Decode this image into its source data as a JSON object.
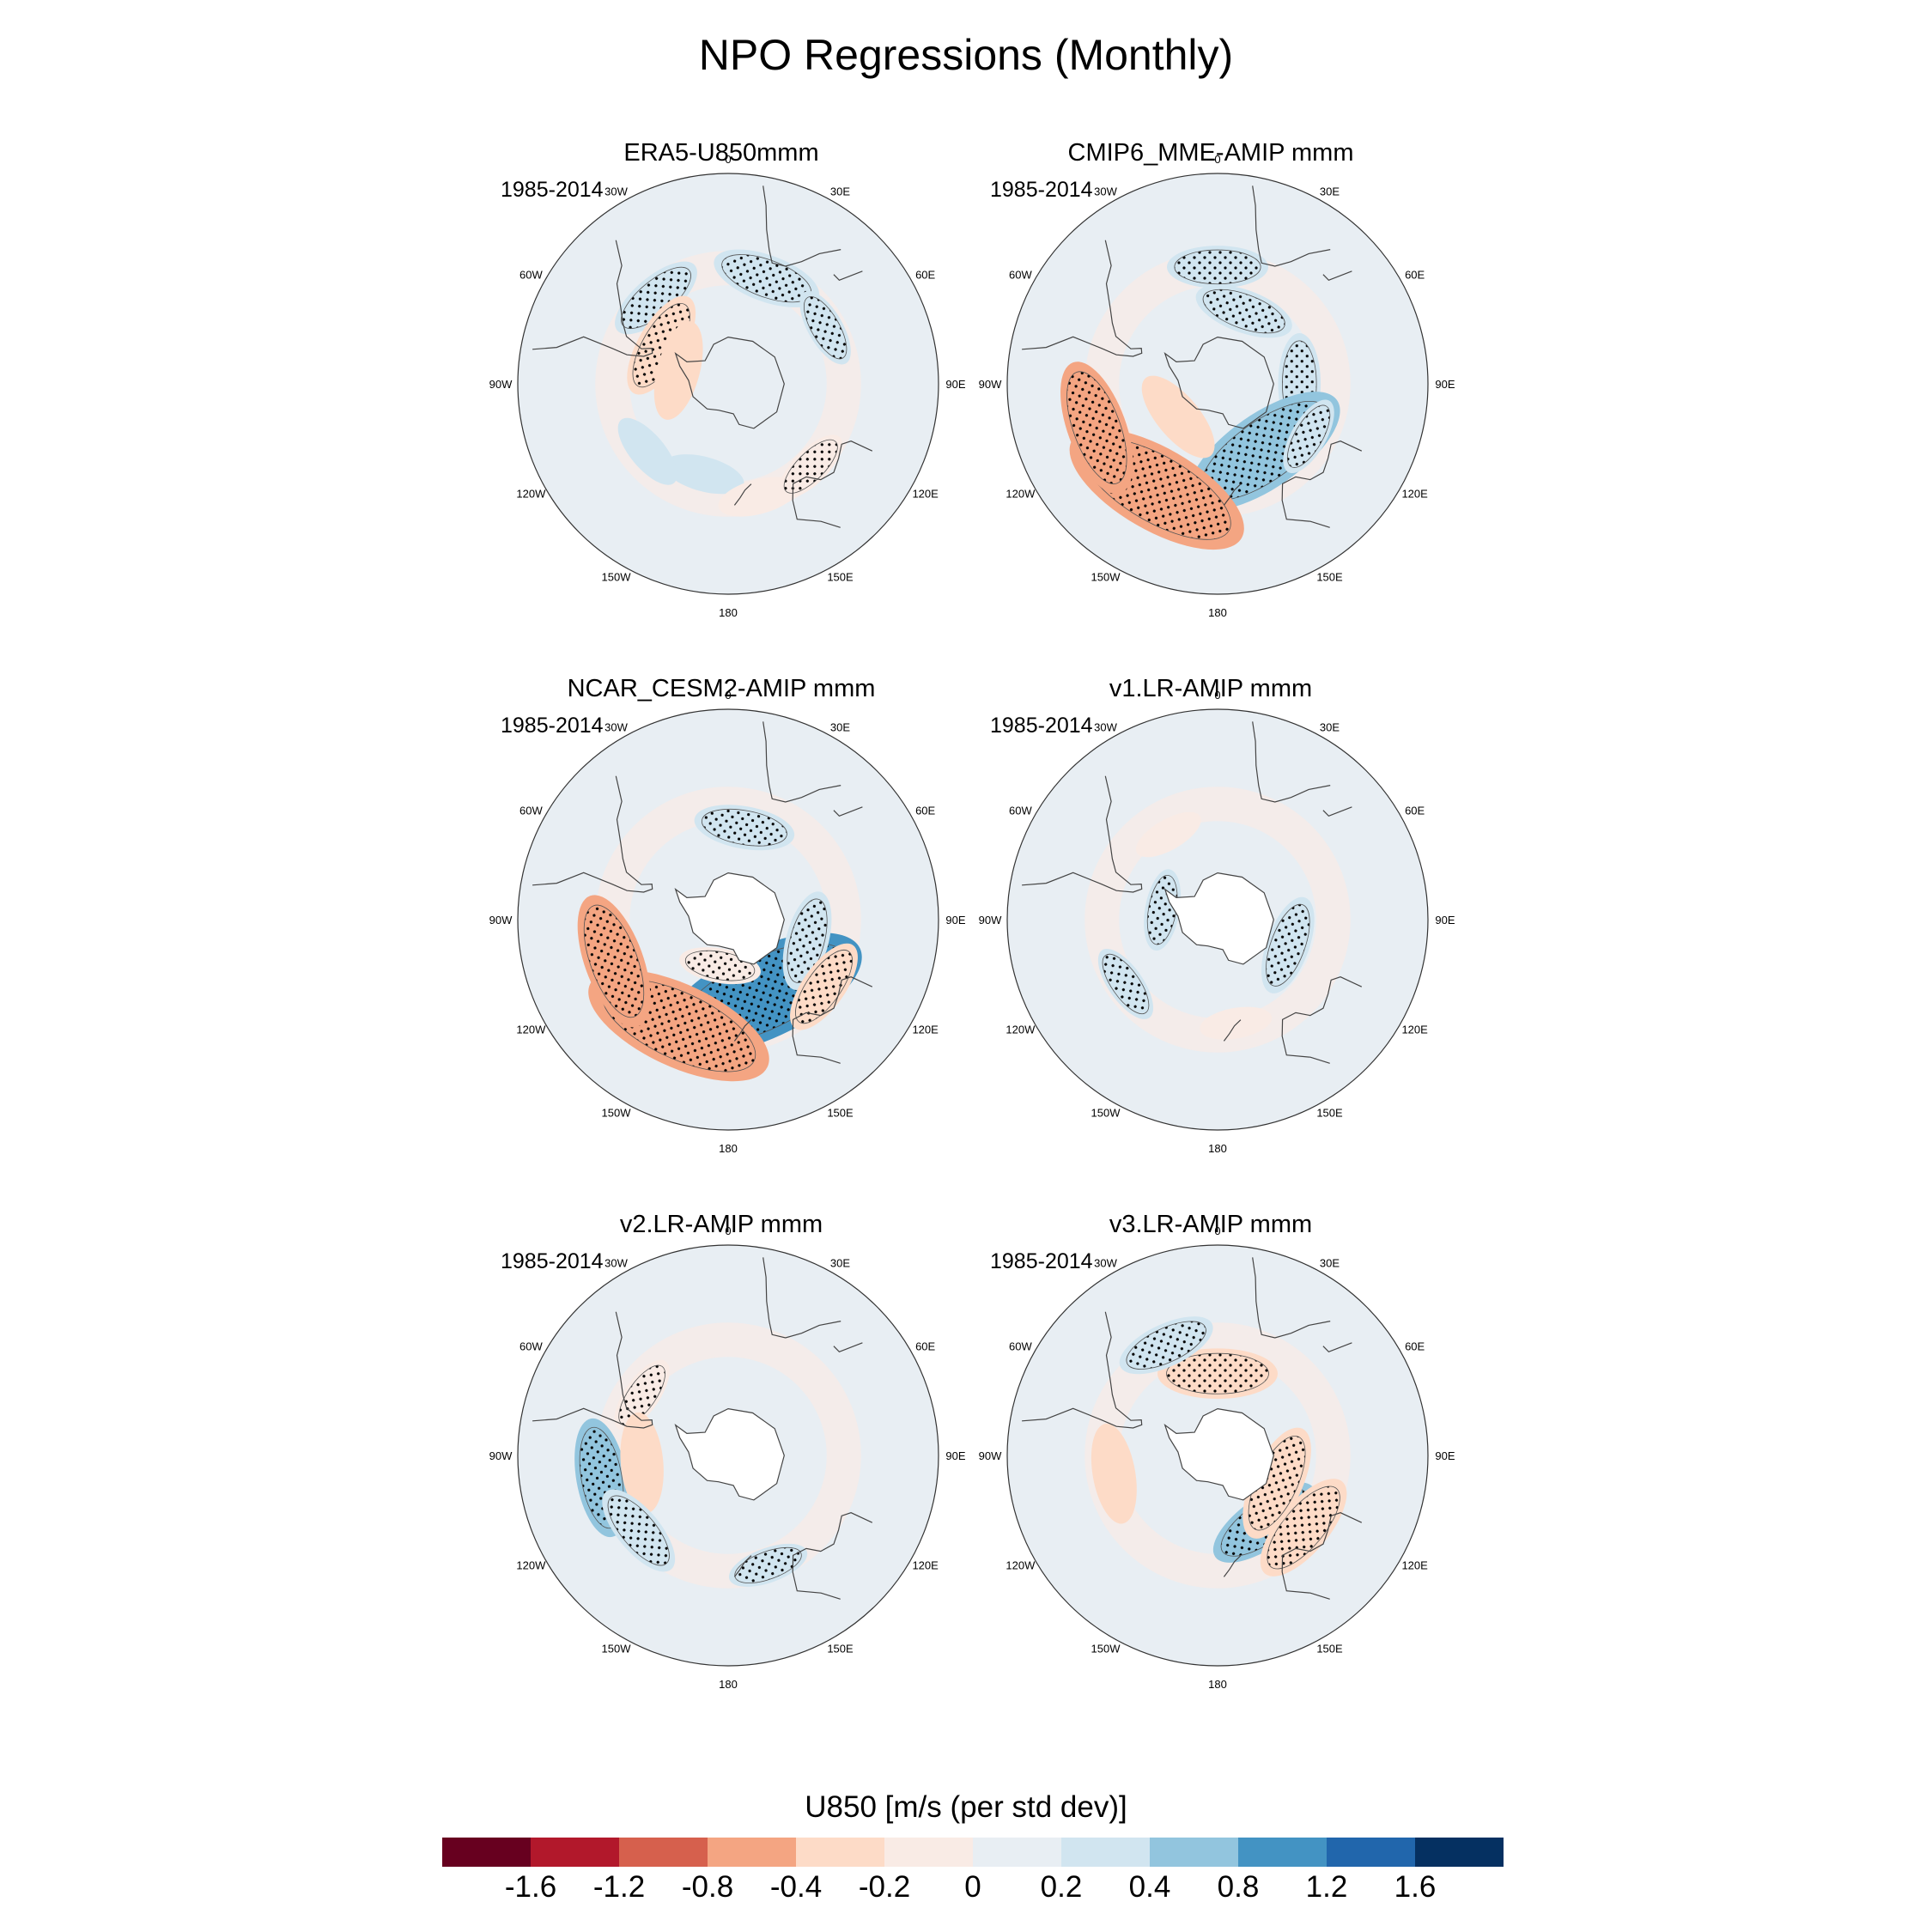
{
  "title": "NPO Regressions (Monthly)",
  "period": "1985-2014",
  "lon_labels": [
    "0",
    "30E",
    "60E",
    "90E",
    "120E",
    "150E",
    "180",
    "150W",
    "120W",
    "90W",
    "60W",
    "30W"
  ],
  "panels": [
    {
      "title": "ERA5-U850mmm",
      "antarctica_masked": false
    },
    {
      "title": "CMIP6_MME-AMIP  mmm",
      "antarctica_masked": false
    },
    {
      "title": "NCAR_CESM2-AMIP  mmm",
      "antarctica_masked": true
    },
    {
      "title": "v1.LR-AMIP  mmm",
      "antarctica_masked": true
    },
    {
      "title": "v2.LR-AMIP  mmm",
      "antarctica_masked": true
    },
    {
      "title": "v3.LR-AMIP  mmm",
      "antarctica_masked": true
    }
  ],
  "colorbar": {
    "title": "U850 [m/s (per std dev)]",
    "colors": [
      "#67001f",
      "#b2182b",
      "#d6604d",
      "#f4a582",
      "#fddbc7",
      "#f9ebe5",
      "#e8eef3",
      "#d1e5f0",
      "#92c5de",
      "#4393c3",
      "#2166ac",
      "#053061"
    ],
    "labels": [
      "-1.6",
      "-1.2",
      "-0.8",
      "-0.4",
      "-0.2",
      "0",
      "0.2",
      "0.4",
      "0.8",
      "1.2",
      "1.6"
    ]
  },
  "anomalies": [
    {
      "panel": 0,
      "lon": 20,
      "lat": -42,
      "value": 0.35,
      "stipple": true
    },
    {
      "panel": 0,
      "lon": -40,
      "lat": -42,
      "value": 0.3,
      "stipple": true
    },
    {
      "panel": 0,
      "lon": -60,
      "lat": -57,
      "value": -0.35,
      "stipple": true
    },
    {
      "panel": 0,
      "lon": -75,
      "lat": -68,
      "value": -0.3,
      "stipple": false
    },
    {
      "panel": 0,
      "lon": -165,
      "lat": -50,
      "value": 0.2,
      "stipple": false
    },
    {
      "panel": 0,
      "lon": 165,
      "lat": -40,
      "value": -0.2,
      "stipple": false
    },
    {
      "panel": 0,
      "lon": 135,
      "lat": -40,
      "value": -0.2,
      "stipple": true
    },
    {
      "panel": 0,
      "lon": -130,
      "lat": -45,
      "value": 0.2,
      "stipple": false
    },
    {
      "panel": 0,
      "lon": 60,
      "lat": -42,
      "value": 0.2,
      "stipple": true
    },
    {
      "panel": 1,
      "lon": 0,
      "lat": -40,
      "value": 0.3,
      "stipple": true
    },
    {
      "panel": 1,
      "lon": 20,
      "lat": -57,
      "value": 0.3,
      "stipple": true
    },
    {
      "panel": 1,
      "lon": 90,
      "lat": -55,
      "value": 0.3,
      "stipple": true
    },
    {
      "panel": 1,
      "lon": 145,
      "lat": -55,
      "value": 0.7,
      "stipple": true
    },
    {
      "panel": 1,
      "lon": -150,
      "lat": -38,
      "value": -0.8,
      "stipple": true
    },
    {
      "panel": 1,
      "lon": -110,
      "lat": -35,
      "value": -0.5,
      "stipple": true
    },
    {
      "panel": 1,
      "lon": -130,
      "lat": -68,
      "value": -0.3,
      "stipple": false
    },
    {
      "panel": 1,
      "lon": 120,
      "lat": -45,
      "value": 0.2,
      "stipple": true
    },
    {
      "panel": 2,
      "lon": 10,
      "lat": -50,
      "value": 0.3,
      "stipple": true
    },
    {
      "panel": 2,
      "lon": 155,
      "lat": -55,
      "value": 0.9,
      "stipple": true
    },
    {
      "panel": 2,
      "lon": 105,
      "lat": -55,
      "value": 0.3,
      "stipple": true
    },
    {
      "panel": 2,
      "lon": -155,
      "lat": -40,
      "value": -0.8,
      "stipple": true
    },
    {
      "panel": 2,
      "lon": -110,
      "lat": -38,
      "value": -0.5,
      "stipple": true
    },
    {
      "panel": 2,
      "lon": 125,
      "lat": -40,
      "value": -0.3,
      "stipple": true
    },
    {
      "panel": 2,
      "lon": -170,
      "lat": -70,
      "value": -0.2,
      "stipple": true
    },
    {
      "panel": 3,
      "lon": 110,
      "lat": -58,
      "value": 0.3,
      "stipple": true
    },
    {
      "panel": 3,
      "lon": -80,
      "lat": -66,
      "value": 0.2,
      "stipple": true
    },
    {
      "panel": 3,
      "lon": -125,
      "lat": -42,
      "value": 0.2,
      "stipple": true
    },
    {
      "panel": 3,
      "lon": 170,
      "lat": -45,
      "value": -0.15,
      "stipple": false
    },
    {
      "panel": 3,
      "lon": -30,
      "lat": -48,
      "value": -0.15,
      "stipple": false
    },
    {
      "panel": 4,
      "lon": -100,
      "lat": -35,
      "value": 0.4,
      "stipple": true
    },
    {
      "panel": 4,
      "lon": -55,
      "lat": -45,
      "value": -0.2,
      "stipple": true
    },
    {
      "panel": 4,
      "lon": -95,
      "lat": -53,
      "value": -0.3,
      "stipple": false
    },
    {
      "panel": 4,
      "lon": 160,
      "lat": -40,
      "value": 0.2,
      "stipple": true
    },
    {
      "panel": 4,
      "lon": -130,
      "lat": -40,
      "value": 0.3,
      "stipple": true
    },
    {
      "panel": 5,
      "lon": 0,
      "lat": -55,
      "value": -0.4,
      "stipple": true
    },
    {
      "panel": 5,
      "lon": 145,
      "lat": -55,
      "value": 0.4,
      "stipple": true
    },
    {
      "panel": 5,
      "lon": 130,
      "lat": -42,
      "value": -0.4,
      "stipple": true
    },
    {
      "panel": 5,
      "lon": 115,
      "lat": -62,
      "value": -0.4,
      "stipple": true
    },
    {
      "panel": 5,
      "lon": -100,
      "lat": -45,
      "value": -0.3,
      "stipple": false
    },
    {
      "panel": 5,
      "lon": -25,
      "lat": -38,
      "value": 0.3,
      "stipple": true
    }
  ]
}
